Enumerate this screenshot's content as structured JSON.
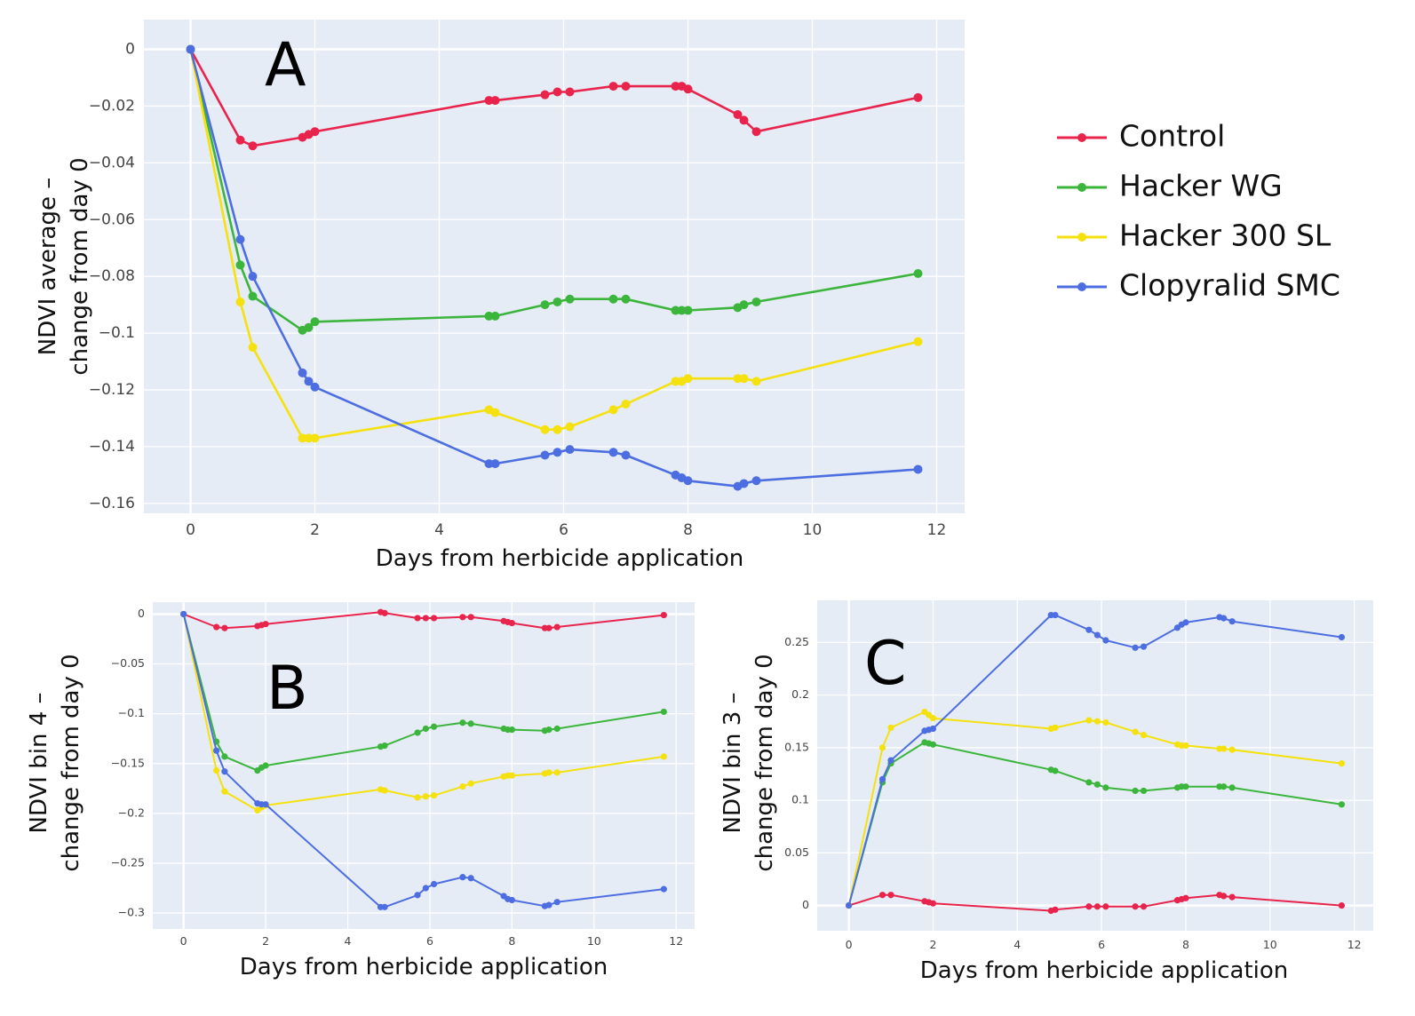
{
  "colors": {
    "plot_bg": "#e5ecf6",
    "grid": "#ffffff",
    "series": [
      "#e8244c",
      "#3cb53c",
      "#f5e10e",
      "#4d6ee0"
    ]
  },
  "legend": {
    "items": [
      "Control",
      "Hacker WG",
      "Hacker 300 SL",
      "Clopyralid SMC"
    ]
  },
  "chart_data": [
    {
      "panel": "A",
      "type": "line",
      "xlabel": "Days from herbicide application",
      "ylabel_lines": [
        "NDVI average –",
        "change from day 0"
      ],
      "xlim": [
        -0.75,
        12.45
      ],
      "ylim": [
        -0.1635,
        0.0105
      ],
      "xticks": [
        0,
        2,
        4,
        6,
        8,
        10,
        12
      ],
      "yticks": [
        0,
        -0.02,
        -0.04,
        -0.06,
        -0.08,
        -0.1,
        -0.12,
        -0.14,
        -0.16
      ],
      "ytick_labels": [
        "0",
        "−0.02",
        "−0.04",
        "−0.06",
        "−0.08",
        "−0.1",
        "−0.12",
        "−0.14",
        "−0.16"
      ],
      "series": [
        {
          "name": "Control",
          "x": [
            0,
            0.8,
            1.0,
            1.8,
            1.9,
            2.0,
            4.8,
            4.9,
            5.7,
            5.9,
            6.1,
            6.8,
            7.0,
            7.8,
            7.9,
            8.0,
            8.8,
            8.9,
            9.1,
            11.7
          ],
          "y": [
            0,
            -0.032,
            -0.034,
            -0.031,
            -0.03,
            -0.029,
            -0.018,
            -0.018,
            -0.016,
            -0.015,
            -0.015,
            -0.013,
            -0.013,
            -0.013,
            -0.013,
            -0.014,
            -0.023,
            -0.025,
            -0.029,
            -0.017
          ]
        },
        {
          "name": "Hacker WG",
          "x": [
            0,
            0.8,
            1.0,
            1.8,
            1.9,
            2.0,
            4.8,
            4.9,
            5.7,
            5.9,
            6.1,
            6.8,
            7.0,
            7.8,
            7.9,
            8.0,
            8.8,
            8.9,
            9.1,
            11.7
          ],
          "y": [
            0,
            -0.076,
            -0.087,
            -0.099,
            -0.098,
            -0.096,
            -0.094,
            -0.094,
            -0.09,
            -0.089,
            -0.088,
            -0.088,
            -0.088,
            -0.092,
            -0.092,
            -0.092,
            -0.091,
            -0.09,
            -0.089,
            -0.079
          ]
        },
        {
          "name": "Hacker 300 SL",
          "x": [
            0,
            0.8,
            1.0,
            1.8,
            1.9,
            2.0,
            4.8,
            4.9,
            5.7,
            5.9,
            6.1,
            6.8,
            7.0,
            7.8,
            7.9,
            8.0,
            8.8,
            8.9,
            9.1,
            11.7
          ],
          "y": [
            0,
            -0.089,
            -0.105,
            -0.137,
            -0.137,
            -0.137,
            -0.127,
            -0.128,
            -0.134,
            -0.134,
            -0.133,
            -0.127,
            -0.125,
            -0.117,
            -0.117,
            -0.116,
            -0.116,
            -0.116,
            -0.117,
            -0.103
          ]
        },
        {
          "name": "Clopyralid SMC",
          "x": [
            0,
            0.8,
            1.0,
            1.8,
            1.9,
            2.0,
            4.8,
            4.9,
            5.7,
            5.9,
            6.1,
            6.8,
            7.0,
            7.8,
            7.9,
            8.0,
            8.8,
            8.9,
            9.1,
            11.7
          ],
          "y": [
            0,
            -0.067,
            -0.08,
            -0.114,
            -0.117,
            -0.119,
            -0.146,
            -0.146,
            -0.143,
            -0.142,
            -0.141,
            -0.142,
            -0.143,
            -0.15,
            -0.151,
            -0.152,
            -0.154,
            -0.153,
            -0.152,
            -0.148
          ]
        }
      ]
    },
    {
      "panel": "B",
      "type": "line",
      "xlabel": "Days from herbicide application",
      "ylabel_lines": [
        "NDVI bin 4 –",
        "change from day 0"
      ],
      "xlim": [
        -0.75,
        12.45
      ],
      "ylim": [
        -0.316,
        0.012
      ],
      "xticks": [
        0,
        2,
        4,
        6,
        8,
        10,
        12
      ],
      "yticks": [
        0,
        -0.05,
        -0.1,
        -0.15,
        -0.2,
        -0.25,
        -0.3
      ],
      "ytick_labels": [
        "0",
        "−0.05",
        "−0.1",
        "−0.15",
        "−0.2",
        "−0.25",
        "−0.3"
      ],
      "series": [
        {
          "name": "Control",
          "x": [
            0,
            0.8,
            1.0,
            1.8,
            1.9,
            2.0,
            4.8,
            4.9,
            5.7,
            5.9,
            6.1,
            6.8,
            7.0,
            7.8,
            7.9,
            8.0,
            8.8,
            8.9,
            9.1,
            11.7
          ],
          "y": [
            0,
            -0.013,
            -0.014,
            -0.012,
            -0.011,
            -0.01,
            0.002,
            0.001,
            -0.004,
            -0.004,
            -0.004,
            -0.003,
            -0.003,
            -0.007,
            -0.008,
            -0.009,
            -0.014,
            -0.014,
            -0.013,
            -0.001
          ]
        },
        {
          "name": "Hacker WG",
          "x": [
            0,
            0.8,
            1.0,
            1.8,
            1.9,
            2.0,
            4.8,
            4.9,
            5.7,
            5.9,
            6.1,
            6.8,
            7.0,
            7.8,
            7.9,
            8.0,
            8.8,
            8.9,
            9.1,
            11.7
          ],
          "y": [
            0,
            -0.128,
            -0.143,
            -0.157,
            -0.154,
            -0.152,
            -0.133,
            -0.132,
            -0.119,
            -0.115,
            -0.113,
            -0.109,
            -0.11,
            -0.115,
            -0.116,
            -0.116,
            -0.117,
            -0.116,
            -0.115,
            -0.098
          ]
        },
        {
          "name": "Hacker 300 SL",
          "x": [
            0,
            0.8,
            1.0,
            1.8,
            1.9,
            2.0,
            4.8,
            4.9,
            5.7,
            5.9,
            6.1,
            6.8,
            7.0,
            7.8,
            7.9,
            8.0,
            8.8,
            8.9,
            9.1,
            11.7
          ],
          "y": [
            0,
            -0.157,
            -0.178,
            -0.197,
            -0.194,
            -0.192,
            -0.176,
            -0.177,
            -0.184,
            -0.183,
            -0.182,
            -0.173,
            -0.17,
            -0.163,
            -0.162,
            -0.162,
            -0.16,
            -0.159,
            -0.159,
            -0.143
          ]
        },
        {
          "name": "Clopyralid SMC",
          "x": [
            0,
            0.8,
            1.0,
            1.8,
            1.9,
            2.0,
            4.8,
            4.9,
            5.7,
            5.9,
            6.1,
            6.8,
            7.0,
            7.8,
            7.9,
            8.0,
            8.8,
            8.9,
            9.1,
            11.7
          ],
          "y": [
            0,
            -0.137,
            -0.158,
            -0.19,
            -0.191,
            -0.191,
            -0.294,
            -0.294,
            -0.282,
            -0.275,
            -0.271,
            -0.264,
            -0.265,
            -0.283,
            -0.286,
            -0.287,
            -0.293,
            -0.292,
            -0.289,
            -0.276
          ]
        }
      ]
    },
    {
      "panel": "C",
      "type": "line",
      "xlabel": "Days from herbicide application",
      "ylabel_lines": [
        "NDVI bin 3 –",
        "change from day 0"
      ],
      "xlim": [
        -0.75,
        12.45
      ],
      "ylim": [
        -0.024,
        0.29
      ],
      "xticks": [
        0,
        2,
        4,
        6,
        8,
        10,
        12
      ],
      "yticks": [
        0,
        0.05,
        0.1,
        0.15,
        0.2,
        0.25
      ],
      "ytick_labels": [
        "0",
        "0.05",
        "0.1",
        "0.15",
        "0.2",
        "0.25"
      ],
      "series": [
        {
          "name": "Control",
          "x": [
            0,
            0.8,
            1.0,
            1.8,
            1.9,
            2.0,
            4.8,
            4.9,
            5.7,
            5.9,
            6.1,
            6.8,
            7.0,
            7.8,
            7.9,
            8.0,
            8.8,
            8.9,
            9.1,
            11.7
          ],
          "y": [
            0,
            0.01,
            0.01,
            0.004,
            0.003,
            0.002,
            -0.005,
            -0.004,
            -0.001,
            -0.001,
            -0.001,
            -0.001,
            -0.001,
            0.005,
            0.006,
            0.007,
            0.01,
            0.009,
            0.008,
            0.0
          ]
        },
        {
          "name": "Hacker WG",
          "x": [
            0,
            0.8,
            1.0,
            1.8,
            1.9,
            2.0,
            4.8,
            4.9,
            5.7,
            5.9,
            6.1,
            6.8,
            7.0,
            7.8,
            7.9,
            8.0,
            8.8,
            8.9,
            9.1,
            11.7
          ],
          "y": [
            0,
            0.117,
            0.135,
            0.155,
            0.154,
            0.153,
            0.129,
            0.128,
            0.117,
            0.115,
            0.112,
            0.109,
            0.109,
            0.112,
            0.113,
            0.113,
            0.113,
            0.113,
            0.112,
            0.096
          ]
        },
        {
          "name": "Hacker 300 SL",
          "x": [
            0,
            0.8,
            1.0,
            1.8,
            1.9,
            2.0,
            4.8,
            4.9,
            5.7,
            5.9,
            6.1,
            6.8,
            7.0,
            7.8,
            7.9,
            8.0,
            8.8,
            8.9,
            9.1,
            11.7
          ],
          "y": [
            0,
            0.15,
            0.169,
            0.184,
            0.181,
            0.178,
            0.168,
            0.169,
            0.176,
            0.175,
            0.174,
            0.165,
            0.162,
            0.153,
            0.152,
            0.152,
            0.149,
            0.149,
            0.148,
            0.135
          ]
        },
        {
          "name": "Clopyralid SMC",
          "x": [
            0,
            0.8,
            1.0,
            1.8,
            1.9,
            2.0,
            4.8,
            4.9,
            5.7,
            5.9,
            6.1,
            6.8,
            7.0,
            7.8,
            7.9,
            8.0,
            8.8,
            8.9,
            9.1,
            11.7
          ],
          "y": [
            0,
            0.12,
            0.138,
            0.166,
            0.167,
            0.168,
            0.276,
            0.276,
            0.262,
            0.257,
            0.252,
            0.245,
            0.246,
            0.264,
            0.267,
            0.269,
            0.274,
            0.273,
            0.27,
            0.255
          ]
        }
      ]
    }
  ]
}
